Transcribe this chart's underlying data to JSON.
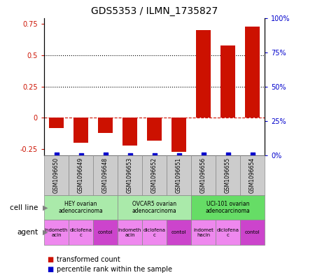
{
  "title": "GDS5353 / ILMN_1735827",
  "samples": [
    "GSM1096650",
    "GSM1096649",
    "GSM1096648",
    "GSM1096653",
    "GSM1096652",
    "GSM1096651",
    "GSM1096656",
    "GSM1096655",
    "GSM1096654"
  ],
  "bar_values": [
    -0.08,
    -0.2,
    -0.12,
    -0.22,
    -0.18,
    -0.27,
    0.7,
    0.58,
    0.73
  ],
  "dot_values": [
    0.3,
    0.27,
    0.28,
    0.26,
    0.27,
    0.26,
    0.51,
    0.51,
    0.52
  ],
  "bar_color": "#cc1100",
  "dot_color": "#0000cc",
  "ylim_left": [
    -0.3,
    0.8
  ],
  "ylim_right": [
    0,
    100
  ],
  "yticks_left": [
    -0.25,
    0,
    0.25,
    0.5,
    0.75
  ],
  "yticks_right": [
    0,
    25,
    50,
    75,
    100
  ],
  "ytick_labels_left": [
    "-0.25",
    "0",
    "0.25",
    "0.5",
    "0.75"
  ],
  "ytick_labels_right": [
    "0%",
    "25%",
    "50%",
    "75%",
    "100%"
  ],
  "hlines_dotted": [
    0.25,
    0.5
  ],
  "hline_dashed": 0,
  "cell_line_groups": [
    {
      "label": "HEY ovarian\nadenocarcinoma",
      "start": 0,
      "end": 3,
      "color": "#aaeaaa"
    },
    {
      "label": "OVCAR5 ovarian\nadenocarcinoma",
      "start": 3,
      "end": 6,
      "color": "#aaeaaa"
    },
    {
      "label": "UCI-101 ovarian\nadenocarcinoma",
      "start": 6,
      "end": 9,
      "color": "#66dd66"
    }
  ],
  "agent_groups": [
    {
      "label": "indometh\nacin",
      "start": 0,
      "end": 1,
      "color": "#ee88ee"
    },
    {
      "label": "diclofena\nc",
      "start": 1,
      "end": 2,
      "color": "#ee88ee"
    },
    {
      "label": "contol",
      "start": 2,
      "end": 3,
      "color": "#cc44cc"
    },
    {
      "label": "indometh\nacin",
      "start": 3,
      "end": 4,
      "color": "#ee88ee"
    },
    {
      "label": "diclofena\nc",
      "start": 4,
      "end": 5,
      "color": "#ee88ee"
    },
    {
      "label": "contol",
      "start": 5,
      "end": 6,
      "color": "#cc44cc"
    },
    {
      "label": "indomet\nhacin",
      "start": 6,
      "end": 7,
      "color": "#ee88ee"
    },
    {
      "label": "diclofena\nc",
      "start": 7,
      "end": 8,
      "color": "#ee88ee"
    },
    {
      "label": "contol",
      "start": 8,
      "end": 9,
      "color": "#cc44cc"
    }
  ],
  "cell_line_row_label": "cell line",
  "agent_row_label": "agent",
  "legend_bar_label": "transformed count",
  "legend_dot_label": "percentile rank within the sample",
  "bg_color": "#ffffff",
  "sample_bg_color": "#cccccc",
  "sample_border_color": "#888888"
}
